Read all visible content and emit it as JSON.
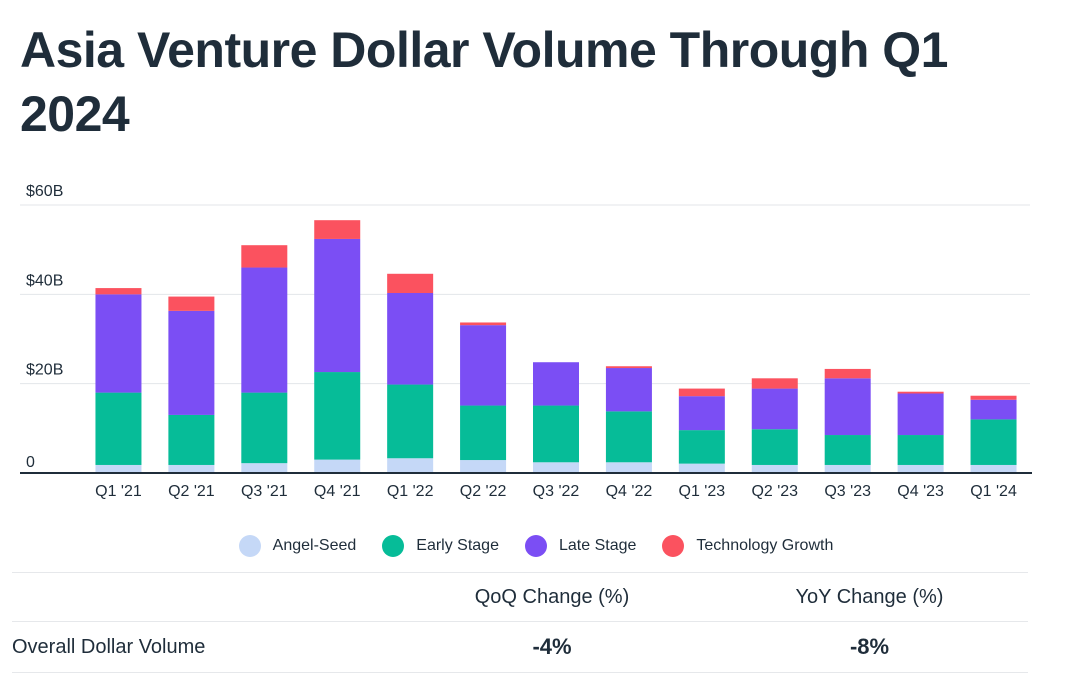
{
  "title": "Asia Venture Dollar Volume Through Q1 2024",
  "chart_data": {
    "type": "bar",
    "stacked": true,
    "title": "Asia Venture Dollar Volume Through Q1 2024",
    "xlabel": "",
    "ylabel": "",
    "ylim": [
      0,
      60
    ],
    "yticks": [
      {
        "value": 0,
        "label": "0"
      },
      {
        "value": 20,
        "label": "$20B"
      },
      {
        "value": 40,
        "label": "$40B"
      },
      {
        "value": 60,
        "label": "$60B"
      }
    ],
    "categories": [
      "Q1 '21",
      "Q2 '21",
      "Q3 '21",
      "Q4 '21",
      "Q1 '22",
      "Q2 '22",
      "Q3 '22",
      "Q4 '22",
      "Q1 '23",
      "Q2 '23",
      "Q3 '23",
      "Q4 '23",
      "Q1 '24"
    ],
    "series": [
      {
        "name": "Angel-Seed",
        "color": "#c5d8f7",
        "values": [
          1.8,
          1.8,
          2.2,
          3.0,
          3.3,
          2.9,
          2.4,
          2.4,
          2.1,
          1.8,
          1.8,
          1.8,
          1.8
        ]
      },
      {
        "name": "Early Stage",
        "color": "#06bc98",
        "values": [
          16.2,
          11.2,
          15.8,
          19.6,
          16.5,
          12.2,
          12.7,
          11.4,
          7.5,
          8.0,
          6.7,
          6.7,
          10.2
        ]
      },
      {
        "name": "Late Stage",
        "color": "#7b4ef4",
        "values": [
          22.0,
          23.3,
          28.0,
          29.8,
          20.5,
          18.0,
          9.7,
          9.7,
          7.6,
          9.1,
          12.7,
          9.3,
          4.4
        ]
      },
      {
        "name": "Technology Growth",
        "color": "#fb525f",
        "values": [
          1.4,
          3.2,
          5.0,
          4.2,
          4.3,
          0.6,
          0,
          0.4,
          1.7,
          2.3,
          2.1,
          0.4,
          0.9
        ]
      }
    ],
    "legend_position": "bottom",
    "grid": true
  },
  "table": {
    "headers": [
      "",
      "QoQ Change (%)",
      "YoY Change (%)"
    ],
    "rows": [
      {
        "label": "Overall Dollar Volume",
        "qoq": "-4%",
        "yoy": "-8%"
      }
    ]
  }
}
